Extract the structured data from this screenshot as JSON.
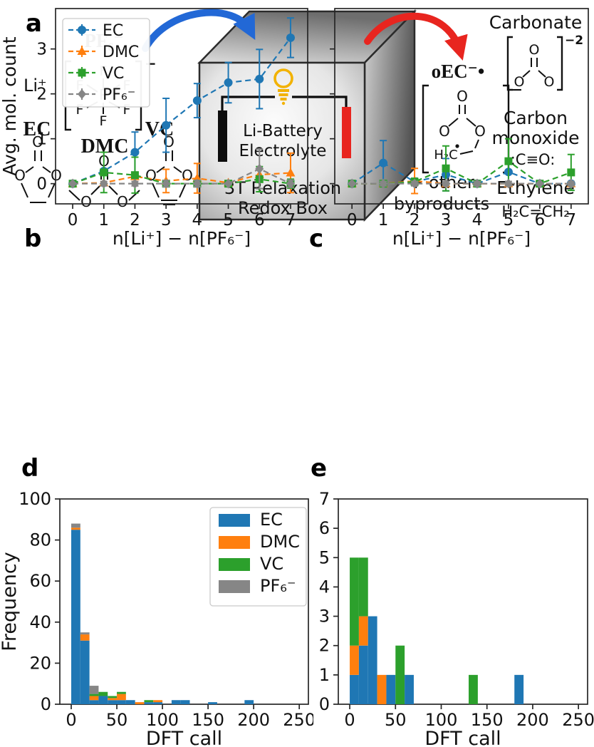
{
  "panel_labels": {
    "a": "a",
    "b": "b",
    "c": "c",
    "d": "d",
    "e": "e"
  },
  "panel_a": {
    "label_li": "Li⁺",
    "pf6_title": "PF₆⁻",
    "charge_minus": "−",
    "label_ec": "EC",
    "label_dmc": "DMC",
    "label_vc": "VC",
    "atoms": {
      "o": "O",
      "f": "F",
      "p": "P",
      "h2c": "H₂C"
    },
    "colors": {
      "ec": "#1d73c4",
      "dmc": "#f0a22e",
      "vc": "#18b463",
      "pf6_title": "#9aa2a8",
      "arrow_in": "#2268d6",
      "arrow_out": "#e8251f",
      "bulb": "#f2b200",
      "electrode_left": "#0d0d0d",
      "electrode_right": "#e8251f",
      "byproducts_text": "#e8251f"
    },
    "box": {
      "line1": "Li-Battery",
      "line2": "Electrolyte",
      "line3": "3T Relaxation",
      "line4": "Redox Box"
    },
    "products": {
      "oec_label": "oEC⁻•",
      "oec_charge": "−",
      "carbonate_title": "Carbonate",
      "carbonate_charge": "−2",
      "co_line1": "Carbon",
      "co_line2": "monoxide",
      "co_formula": ":C≡O:",
      "ethylene_title": "Ethylene",
      "ethylene_formula": "H₂C=CH₂",
      "other_line1": "+ other",
      "other_line2": "byproducts"
    }
  },
  "chart_data": [
    {
      "id": "b",
      "type": "line",
      "x": [
        0,
        1,
        2,
        3,
        4,
        5,
        6,
        7
      ],
      "xlabel": "n[Li⁺] − n[PF₆⁻]",
      "ylabel": "Avg. mol. count",
      "xlim": [
        -0.55,
        7.55
      ],
      "ylim": [
        -0.45,
        3.9
      ],
      "xticks": [
        0,
        1,
        2,
        3,
        4,
        5,
        6,
        7
      ],
      "yticks": [
        0,
        1,
        2,
        3
      ],
      "grid": false,
      "legend_position": "upper left",
      "series": [
        {
          "name": "EC",
          "color": "#1f77b4",
          "marker": "circle",
          "y": [
            0,
            0.28,
            0.7,
            1.3,
            1.85,
            2.25,
            2.33,
            3.25
          ],
          "yerr": [
            0,
            0,
            0.45,
            0.6,
            0.38,
            0.45,
            0.66,
            0.44
          ]
        },
        {
          "name": "DMC",
          "color": "#ff7f0e",
          "marker": "triangle",
          "y": [
            0,
            0.02,
            0.16,
            0.06,
            0.12,
            0.02,
            0.2,
            0.24
          ],
          "yerr": [
            0,
            0,
            0,
            0.26,
            0.33,
            0,
            0,
            0.44
          ]
        },
        {
          "name": "VC",
          "color": "#2ca02c",
          "marker": "square",
          "y": [
            0,
            0.25,
            0.19,
            0,
            0,
            0,
            0.1,
            0
          ],
          "yerr": [
            0,
            0.45,
            0.4,
            0.07,
            0.07,
            0,
            0.28,
            0.1
          ]
        },
        {
          "name": "PF₆⁻",
          "color": "#868686",
          "marker": "diamond",
          "y": [
            0,
            0,
            0,
            0,
            0,
            0,
            0.33,
            0
          ],
          "yerr": [
            0,
            0.05,
            0.05,
            0.07,
            0.07,
            0,
            0.44,
            0.08
          ]
        }
      ]
    },
    {
      "id": "c",
      "type": "line",
      "x": [
        0,
        1,
        2,
        3,
        4,
        5,
        6,
        7
      ],
      "xlabel": "n[Li⁺] − n[PF₆⁻]",
      "ylabel": "",
      "xlim": [
        -0.55,
        7.55
      ],
      "ylim": [
        -0.45,
        3.9
      ],
      "xticks": [
        0,
        1,
        2,
        3,
        4,
        5,
        6,
        7
      ],
      "yticks": [
        0,
        1,
        2,
        3
      ],
      "grid": false,
      "legend_position": "none",
      "series": [
        {
          "name": "EC",
          "color": "#1f77b4",
          "marker": "circle",
          "y": [
            0,
            0.46,
            0.04,
            0.2,
            0,
            0.26,
            0,
            0
          ],
          "yerr": [
            0,
            0.5,
            0.08,
            0.36,
            0,
            0.3,
            0,
            0
          ]
        },
        {
          "name": "DMC",
          "color": "#ff7f0e",
          "marker": "triangle",
          "y": [
            0,
            0,
            0.06,
            0,
            0,
            0,
            0,
            0
          ],
          "yerr": [
            0,
            0,
            0.28,
            0,
            0,
            0,
            0,
            0
          ]
        },
        {
          "name": "VC",
          "color": "#2ca02c",
          "marker": "square",
          "y": [
            0,
            0,
            0.04,
            0.34,
            0,
            0.5,
            0,
            0.25
          ],
          "yerr": [
            0,
            0,
            0.08,
            0.5,
            0,
            0.5,
            0,
            0.4
          ]
        },
        {
          "name": "PF₆⁻",
          "color": "#868686",
          "marker": "diamond",
          "y": [
            0,
            0,
            0,
            0,
            0,
            0,
            0,
            0
          ],
          "yerr": [
            0,
            0.05,
            0.05,
            0.05,
            0.05,
            0.05,
            0,
            0.05
          ]
        }
      ]
    },
    {
      "id": "d",
      "type": "bar",
      "subtype": "stacked-histogram",
      "bin_start": 0,
      "bin_width": 10,
      "bin_edges_note": "bins every 10 DFT calls from 0 to 200",
      "xlabel": "DFT call",
      "ylabel": "Frequency",
      "xlim": [
        -12.5,
        260
      ],
      "ylim": [
        0,
        100
      ],
      "xticks": [
        0,
        50,
        100,
        150,
        200,
        250
      ],
      "yticks": [
        0,
        20,
        40,
        60,
        80,
        100
      ],
      "grid": false,
      "legend_position": "upper right",
      "series": [
        {
          "name": "EC",
          "color": "#1f77b4",
          "counts": [
            85,
            31,
            2,
            4,
            2,
            2,
            2,
            0,
            1,
            1,
            0,
            2,
            2,
            0,
            0,
            1,
            0,
            0,
            0,
            2
          ]
        },
        {
          "name": "DMC",
          "color": "#ff7f0e",
          "counts": [
            1,
            3,
            2,
            0,
            1,
            3,
            0,
            1,
            0,
            1,
            0,
            0,
            0,
            0,
            0,
            0,
            0,
            0,
            0,
            0
          ]
        },
        {
          "name": "VC",
          "color": "#2ca02c",
          "counts": [
            0,
            0,
            1,
            2,
            1,
            1,
            0,
            0,
            1,
            0,
            0,
            0,
            0,
            0,
            0,
            0,
            0,
            0,
            0,
            0
          ]
        },
        {
          "name": "PF₆⁻",
          "color": "#868686",
          "counts": [
            2,
            1,
            4,
            0,
            0,
            0,
            0,
            0,
            0,
            0,
            0,
            0,
            0,
            0,
            0,
            0,
            0,
            0,
            0,
            0
          ]
        }
      ]
    },
    {
      "id": "e",
      "type": "bar",
      "subtype": "stacked-histogram",
      "bin_start": 0,
      "bin_width": 10,
      "xlabel": "DFT call",
      "ylabel": "",
      "xlim": [
        -12.5,
        260
      ],
      "ylim": [
        0,
        7
      ],
      "xticks": [
        0,
        50,
        100,
        150,
        200,
        250
      ],
      "yticks": [
        0,
        1,
        2,
        3,
        4,
        5,
        6,
        7
      ],
      "grid": false,
      "legend_position": "none",
      "series": [
        {
          "name": "EC",
          "color": "#1f77b4",
          "counts": [
            1,
            2,
            3,
            0,
            1,
            0,
            1,
            0,
            0,
            0,
            0,
            0,
            0,
            0,
            0,
            0,
            0,
            0,
            1,
            0
          ]
        },
        {
          "name": "DMC",
          "color": "#ff7f0e",
          "counts": [
            1,
            1,
            0,
            1,
            0,
            0,
            0,
            0,
            0,
            0,
            0,
            0,
            0,
            0,
            0,
            0,
            0,
            0,
            0,
            0
          ]
        },
        {
          "name": "VC",
          "color": "#2ca02c",
          "counts": [
            3,
            2,
            0,
            0,
            0,
            2,
            0,
            0,
            0,
            0,
            0,
            0,
            0,
            1,
            0,
            0,
            0,
            0,
            0,
            0
          ]
        },
        {
          "name": "PF₆⁻",
          "color": "#868686",
          "counts": [
            0,
            0,
            0,
            0,
            0,
            0,
            0,
            0,
            0,
            0,
            0,
            0,
            0,
            0,
            0,
            0,
            0,
            0,
            0,
            0
          ]
        }
      ]
    }
  ]
}
